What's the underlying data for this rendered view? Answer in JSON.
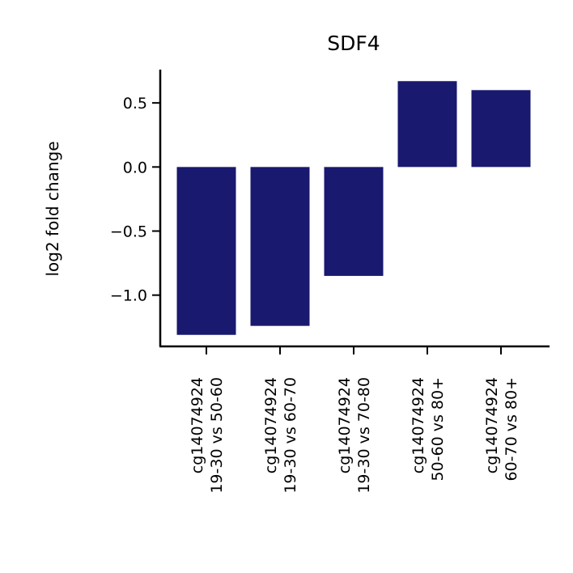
{
  "chart_data": {
    "type": "bar",
    "title": "SDF4",
    "xlabel": "",
    "ylabel": "log2 fold change",
    "categories": [
      [
        "cg14074924",
        "19-30 vs 50-60"
      ],
      [
        "cg14074924",
        "19-30 vs 60-70"
      ],
      [
        "cg14074924",
        "19-30 vs 70-80"
      ],
      [
        "cg14074924",
        "50-60 vs 80+"
      ],
      [
        "cg14074924",
        "60-70 vs 80+"
      ]
    ],
    "values": [
      -1.31,
      -1.24,
      -0.85,
      0.67,
      0.6
    ],
    "ylim": [
      -1.4,
      0.76
    ],
    "yticks": [
      0.5,
      0.0,
      -0.5,
      -1.0
    ],
    "ytick_labels": [
      "0.5",
      "0.0",
      "−0.5",
      "−1.0"
    ],
    "bar_color": "#191970",
    "grid": false,
    "legend": "none"
  }
}
